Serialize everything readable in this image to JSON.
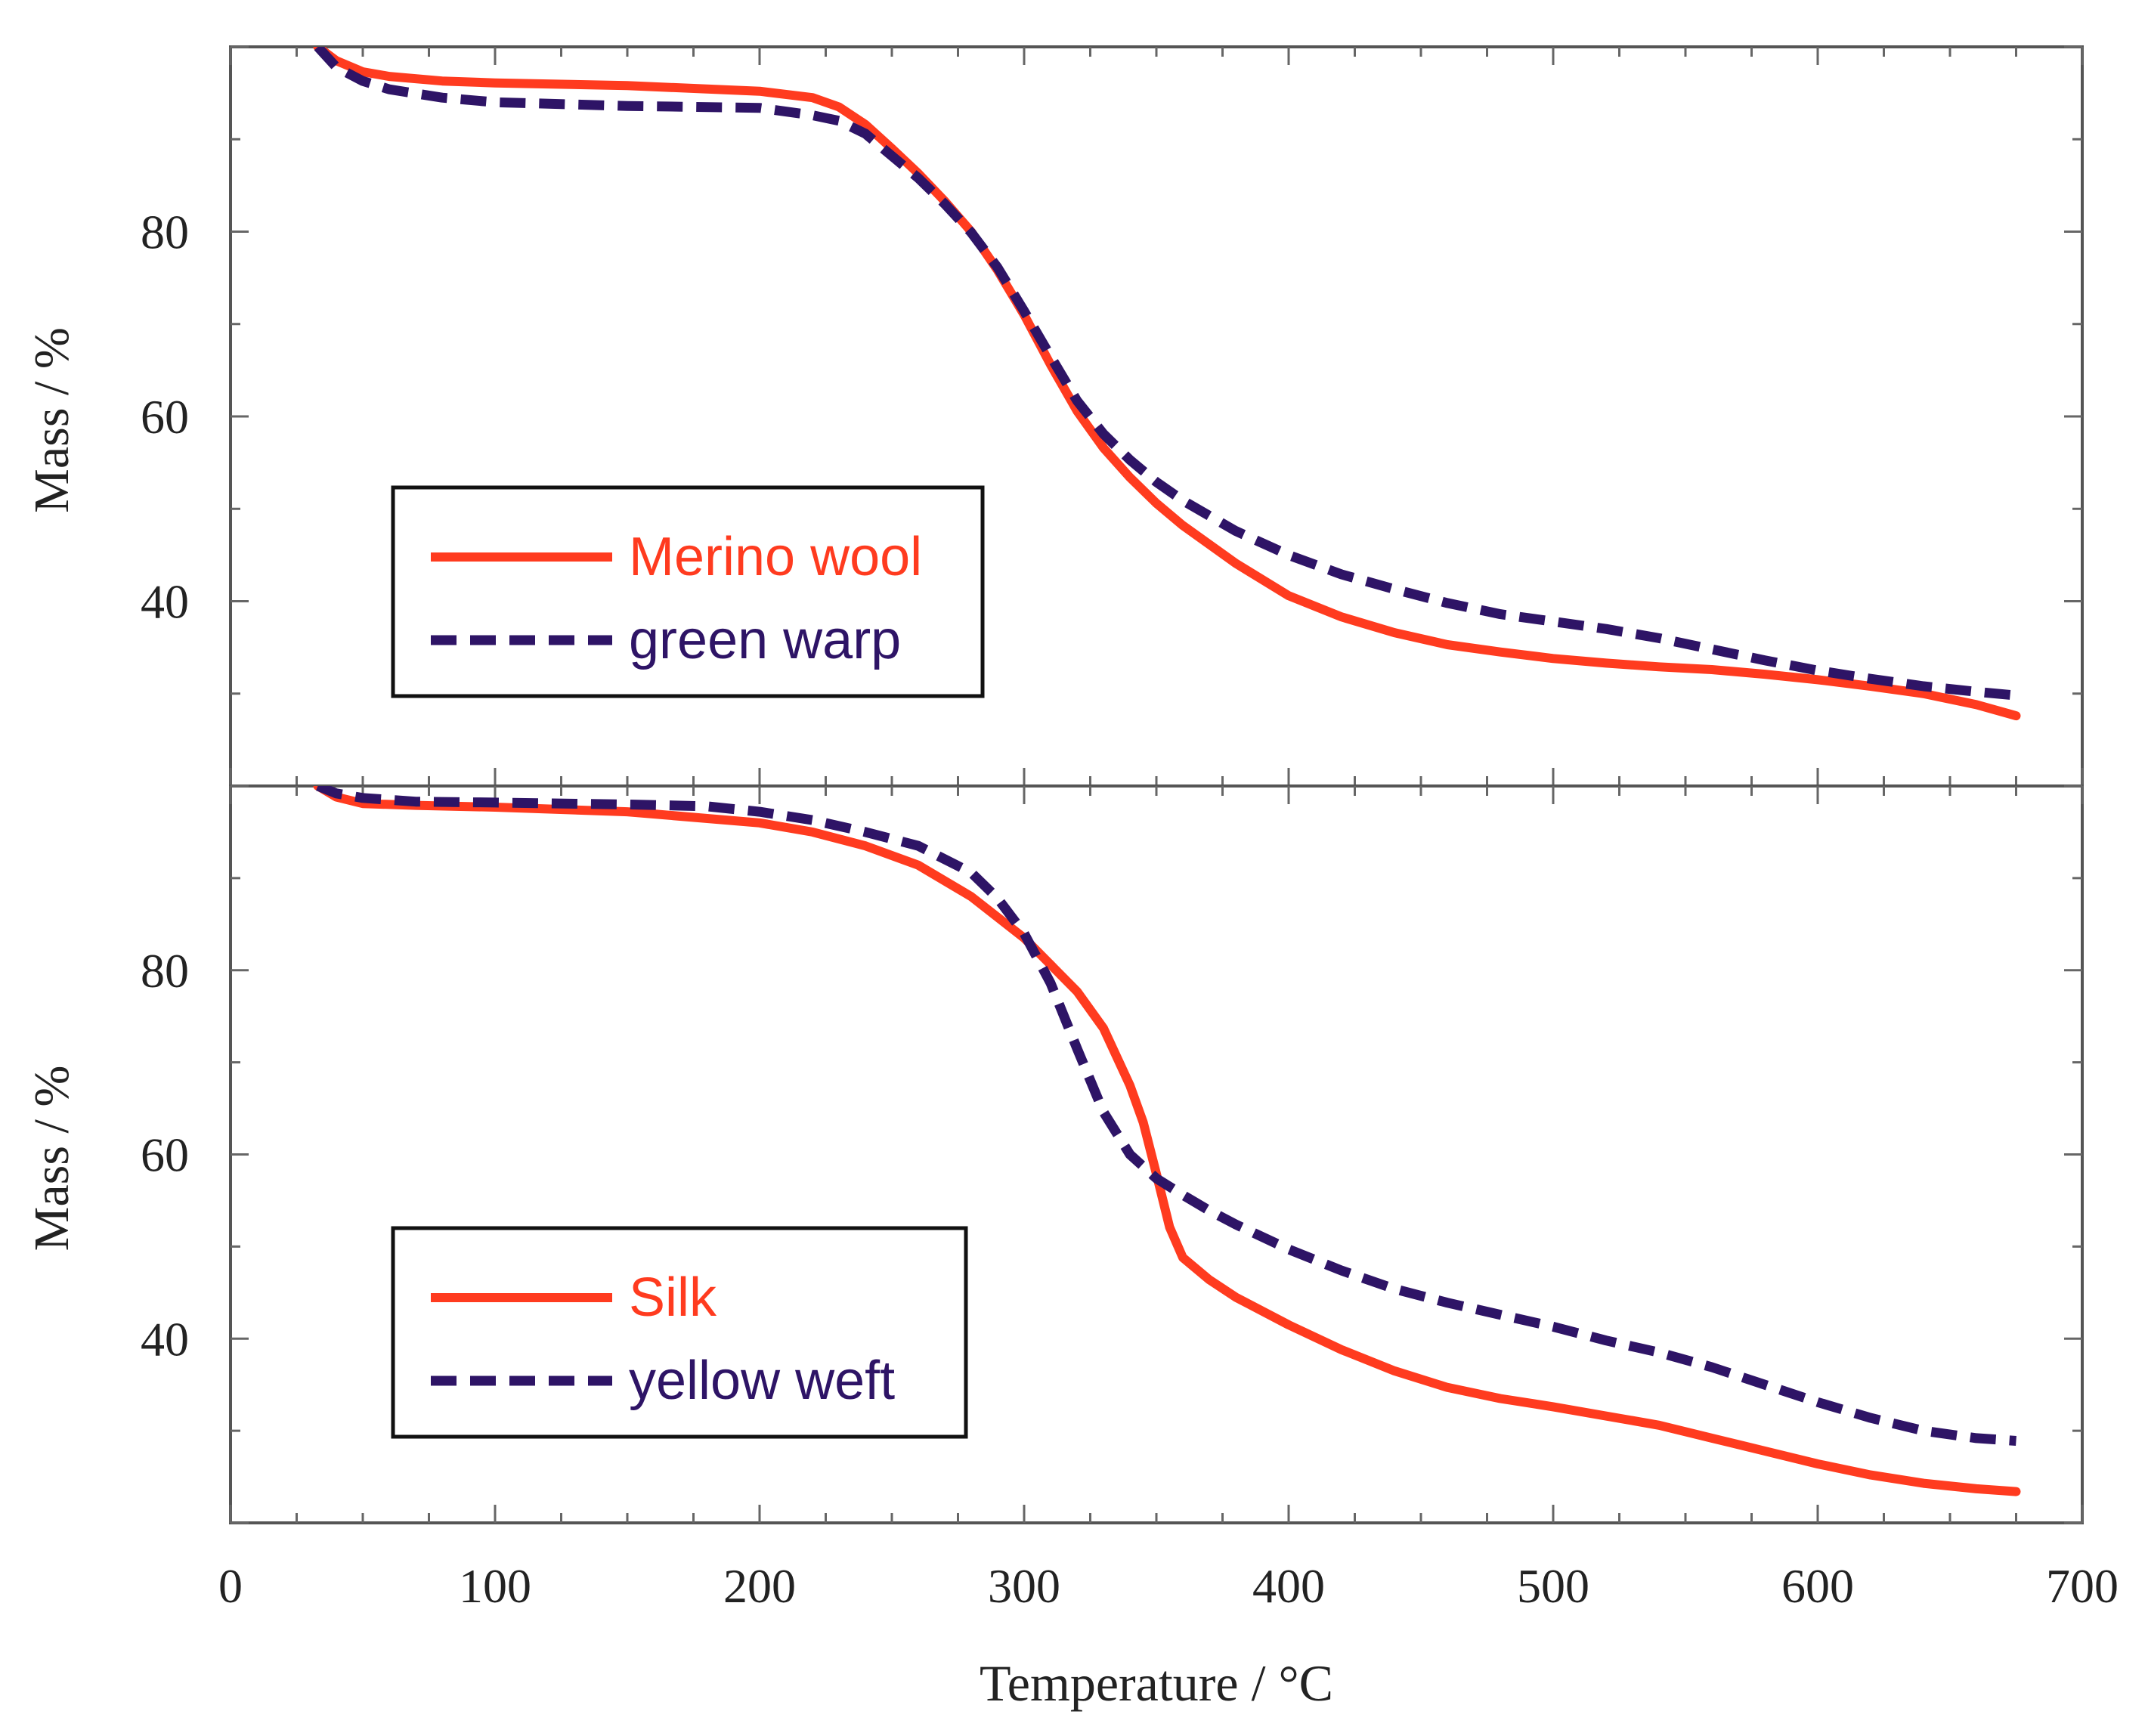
{
  "chart_data": [
    {
      "type": "line",
      "xlabel": "Temperature / °C",
      "ylabel": "Mass / %",
      "xlim": [
        0,
        700
      ],
      "ylim": [
        20,
        100
      ],
      "yticks": [
        40,
        60,
        80
      ],
      "grid": false,
      "legend_position": "lower-left",
      "series": [
        {
          "name": "Merino wool",
          "color": "#ff3b1f",
          "style": "solid",
          "x": [
            33,
            40,
            50,
            60,
            80,
            100,
            150,
            200,
            220,
            230,
            240,
            250,
            260,
            270,
            280,
            290,
            300,
            310,
            320,
            330,
            340,
            350,
            360,
            380,
            400,
            420,
            440,
            460,
            480,
            500,
            520,
            540,
            560,
            580,
            600,
            620,
            640,
            660,
            675
          ],
          "values": [
            100,
            98.5,
            97.3,
            96.8,
            96.3,
            96.1,
            95.8,
            95.2,
            94.5,
            93.5,
            91.6,
            89.0,
            86.3,
            83.3,
            80.0,
            75.8,
            71.0,
            65.6,
            60.6,
            56.6,
            53.4,
            50.6,
            48.2,
            44.1,
            40.6,
            38.3,
            36.6,
            35.3,
            34.5,
            33.8,
            33.3,
            32.9,
            32.6,
            32.1,
            31.5,
            30.8,
            30.0,
            28.8,
            27.6
          ]
        },
        {
          "name": "green warp",
          "color": "#2e1466",
          "style": "dashed",
          "x": [
            33,
            40,
            50,
            60,
            80,
            100,
            150,
            200,
            220,
            230,
            240,
            250,
            260,
            270,
            280,
            290,
            300,
            310,
            320,
            330,
            340,
            350,
            360,
            380,
            400,
            420,
            440,
            460,
            480,
            500,
            520,
            540,
            560,
            580,
            600,
            620,
            640,
            660,
            675
          ],
          "values": [
            100,
            97.8,
            96.3,
            95.4,
            94.5,
            94.0,
            93.6,
            93.4,
            92.6,
            92.0,
            90.6,
            88.2,
            85.8,
            83.0,
            79.9,
            76.1,
            71.4,
            66.5,
            61.7,
            58.1,
            55.3,
            52.9,
            50.9,
            47.6,
            45.0,
            42.9,
            41.3,
            39.8,
            38.6,
            37.8,
            37.0,
            36.0,
            34.8,
            33.6,
            32.5,
            31.6,
            30.8,
            30.2,
            29.8
          ]
        }
      ]
    },
    {
      "type": "line",
      "xlabel": "Temperature / °C",
      "ylabel": "Mass / %",
      "xlim": [
        0,
        700
      ],
      "ylim": [
        20,
        100
      ],
      "xticks": [
        0,
        100,
        200,
        300,
        400,
        500,
        600,
        700
      ],
      "yticks": [
        40,
        60,
        80
      ],
      "grid": false,
      "legend_position": "lower-left",
      "series": [
        {
          "name": "Silk",
          "color": "#ff3b1f",
          "style": "solid",
          "x": [
            33,
            40,
            50,
            70,
            100,
            150,
            200,
            220,
            240,
            260,
            280,
            300,
            310,
            320,
            330,
            340,
            345,
            350,
            355,
            360,
            370,
            380,
            400,
            420,
            440,
            460,
            480,
            500,
            520,
            540,
            560,
            580,
            600,
            620,
            640,
            660,
            675
          ],
          "values": [
            100,
            98.8,
            98.1,
            97.9,
            97.7,
            97.2,
            96.0,
            95.0,
            93.5,
            91.4,
            88.0,
            83.5,
            80.6,
            77.7,
            73.7,
            67.5,
            63.5,
            57.9,
            52.1,
            48.8,
            46.4,
            44.5,
            41.5,
            38.8,
            36.5,
            34.7,
            33.5,
            32.6,
            31.6,
            30.6,
            29.2,
            27.8,
            26.4,
            25.2,
            24.3,
            23.7,
            23.4
          ]
        },
        {
          "name": "yellow weft",
          "color": "#2e1466",
          "style": "dashed",
          "x": [
            33,
            40,
            50,
            70,
            100,
            150,
            180,
            200,
            220,
            240,
            260,
            280,
            290,
            300,
            310,
            320,
            330,
            340,
            350,
            360,
            370,
            380,
            400,
            420,
            440,
            460,
            480,
            500,
            520,
            540,
            560,
            580,
            600,
            620,
            640,
            660,
            675
          ],
          "values": [
            100,
            99.2,
            98.7,
            98.3,
            98.2,
            98.0,
            97.8,
            97.2,
            96.3,
            95.0,
            93.5,
            90.6,
            87.8,
            84.0,
            78.6,
            71.5,
            64.6,
            60.0,
            57.4,
            55.6,
            53.9,
            52.4,
            49.7,
            47.4,
            45.4,
            43.9,
            42.6,
            41.3,
            39.8,
            38.5,
            36.9,
            35.0,
            33.1,
            31.4,
            30.0,
            29.2,
            28.9
          ]
        }
      ]
    }
  ]
}
